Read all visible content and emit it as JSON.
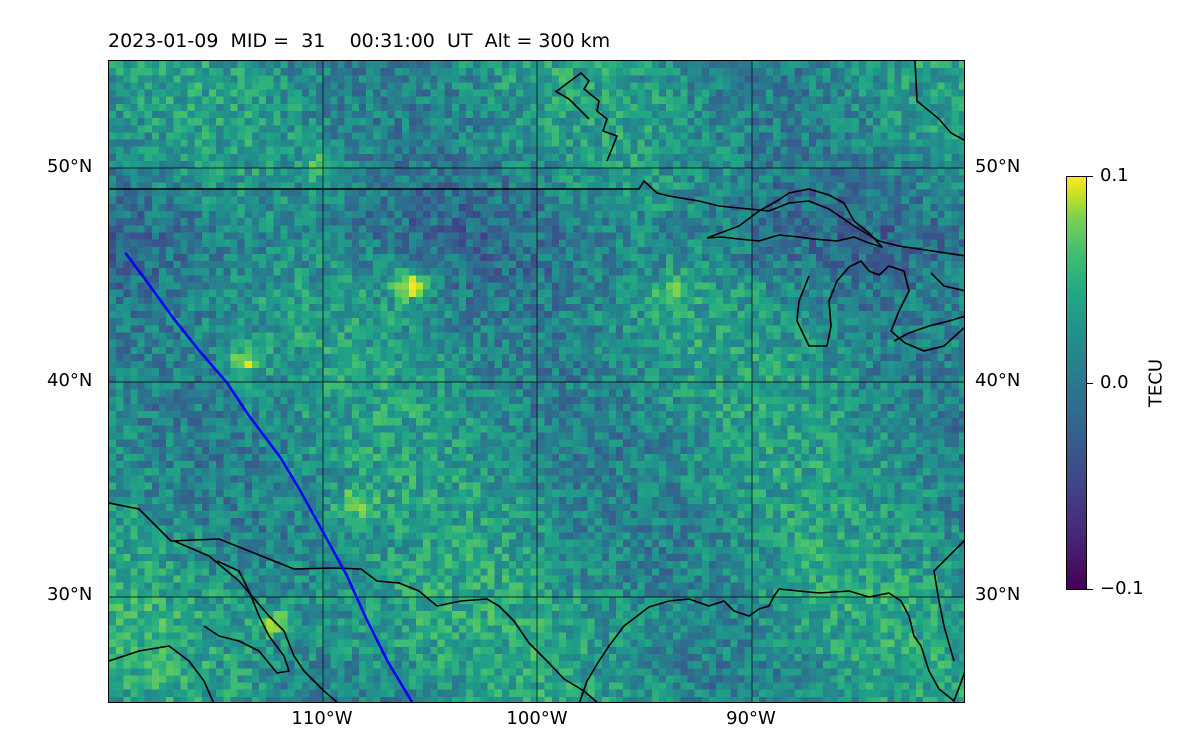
{
  "title": {
    "date": "2023-01-09",
    "mid_label": "MID =",
    "mid_value": "31",
    "time": "00:31:00",
    "time_unit": "UT",
    "alt_label": "Alt = 300 km"
  },
  "map": {
    "projection": "plate carree",
    "lon_range": [
      -120,
      -80
    ],
    "lat_range": [
      25,
      55
    ],
    "gridlines": {
      "lon": [
        -110,
        -100,
        -90
      ],
      "lat": [
        30,
        40,
        50
      ]
    },
    "lon_labels": [
      "110°W",
      "100°W",
      "90°W"
    ],
    "lat_labels_left": [
      "50°N",
      "40°N",
      "30°N"
    ],
    "lat_labels_right": [
      "50°N",
      "40°N",
      "30°N"
    ],
    "field_colormap": "viridis",
    "track_color": "#0000ff",
    "coastline_color": "#000000"
  },
  "colorbar": {
    "label": "TECU",
    "min_label": "−0.1",
    "mid_label": "0.0",
    "max_label": "0.1",
    "range": [
      -0.1,
      0.1
    ],
    "colormap": "viridis"
  },
  "satellite_track": {
    "color": "#0000ff",
    "points": [
      [
        -119.2,
        46.0
      ],
      [
        -118.3,
        44.8
      ],
      [
        -117.0,
        43.0
      ],
      [
        -115.8,
        41.5
      ],
      [
        -114.5,
        40.0
      ],
      [
        -113.5,
        38.5
      ],
      [
        -112.0,
        36.5
      ],
      [
        -111.1,
        35.0
      ],
      [
        -110.0,
        33.0
      ],
      [
        -108.9,
        31.0
      ],
      [
        -108.0,
        29.0
      ],
      [
        -107.0,
        27.0
      ],
      [
        -105.8,
        25.0
      ]
    ]
  },
  "enhancements": [
    {
      "lon": -106.0,
      "lat": 44.5,
      "value": 0.1
    },
    {
      "lon": -113.7,
      "lat": 41.0,
      "value": 0.08
    },
    {
      "lon": -108.5,
      "lat": 34.3,
      "value": 0.07
    },
    {
      "lon": -112.2,
      "lat": 28.8,
      "value": 0.06
    },
    {
      "lon": -110.0,
      "lat": 50.0,
      "value": 0.05
    },
    {
      "lon": -93.8,
      "lat": 44.1,
      "value": 0.05
    }
  ]
}
